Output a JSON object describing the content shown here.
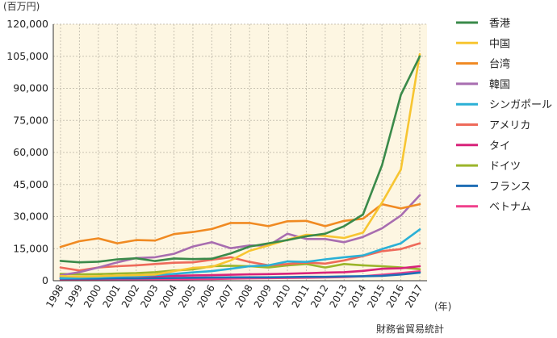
{
  "chart_data": {
    "type": "line",
    "y_unit_label": "(百万円)",
    "x_unit_label": "(年)",
    "source": "財務省貿易統計",
    "ylim": [
      0,
      120000
    ],
    "yticks": [
      "0",
      "15,000",
      "30,000",
      "45,000",
      "60,000",
      "75,000",
      "90,000",
      "105,000",
      "120,000"
    ],
    "x": [
      "1998",
      "1999",
      "2000",
      "2001",
      "2002",
      "2003",
      "2004",
      "2005",
      "2006",
      "2007",
      "2008",
      "2009",
      "2010",
      "2011",
      "2012",
      "2013",
      "2014",
      "2015",
      "2016",
      "2017"
    ],
    "grid": true,
    "legend_position": "right",
    "series": [
      {
        "name": "香港",
        "color": "#3a8a4a",
        "values": [
          9300,
          8600,
          8900,
          10000,
          10500,
          9200,
          10400,
          10100,
          10300,
          12800,
          16000,
          17500,
          19000,
          20800,
          22000,
          25500,
          31000,
          54000,
          87000,
          105000
        ]
      },
      {
        "name": "中国",
        "color": "#f7c531",
        "values": [
          2200,
          1900,
          2100,
          2400,
          2600,
          2900,
          4500,
          6000,
          6500,
          9500,
          14000,
          16500,
          19200,
          21500,
          21000,
          20000,
          22500,
          36500,
          52000,
          106000
        ]
      },
      {
        "name": "台湾",
        "color": "#f08a22",
        "values": [
          15800,
          18500,
          19800,
          17500,
          19000,
          18800,
          21800,
          22800,
          24200,
          27000,
          27000,
          25500,
          27800,
          28000,
          25500,
          28000,
          29000,
          35800,
          33800,
          35800
        ]
      },
      {
        "name": "韓国",
        "color": "#a86db0",
        "values": [
          2600,
          4000,
          6200,
          8600,
          10600,
          11000,
          12600,
          16000,
          18000,
          15200,
          16500,
          16500,
          22000,
          19500,
          19500,
          18000,
          20500,
          24500,
          30500,
          40000
        ]
      },
      {
        "name": "シンガポール",
        "color": "#2ab0d6",
        "values": [
          1200,
          1400,
          1600,
          1900,
          2200,
          2600,
          3200,
          3900,
          4500,
          5600,
          6800,
          7200,
          9000,
          8800,
          10000,
          11000,
          11800,
          14800,
          17500,
          24000
        ]
      },
      {
        "name": "アメリカ",
        "color": "#ee6a5a",
        "values": [
          6200,
          4800,
          6200,
          6800,
          7200,
          7800,
          8400,
          8600,
          9800,
          11000,
          8800,
          7200,
          7800,
          8500,
          8000,
          9500,
          11500,
          13800,
          14800,
          17500
        ]
      },
      {
        "name": "タイ",
        "color": "#d8237a",
        "values": [
          1800,
          1700,
          1800,
          2000,
          2100,
          2200,
          2300,
          2500,
          2600,
          2800,
          3000,
          3100,
          3300,
          3500,
          3800,
          4000,
          4600,
          5600,
          5800,
          6800
        ]
      },
      {
        "name": "ドイツ",
        "color": "#9bb52a",
        "values": [
          3200,
          3000,
          3100,
          3400,
          3600,
          4000,
          4800,
          5300,
          6800,
          7000,
          6800,
          6200,
          7200,
          7800,
          6200,
          7800,
          7200,
          6800,
          6200,
          5400
        ]
      },
      {
        "name": "フランス",
        "color": "#1f6eb5",
        "values": [
          1000,
          1000,
          1000,
          1100,
          1100,
          1200,
          1300,
          1400,
          1500,
          1600,
          1600,
          1600,
          1700,
          1800,
          1800,
          2000,
          2100,
          2300,
          2900,
          3800
        ]
      },
      {
        "name": "ベトナム",
        "color": "#f0408c",
        "values": [
          300,
          300,
          350,
          400,
          450,
          500,
          600,
          700,
          800,
          1000,
          1100,
          1200,
          1300,
          1400,
          1500,
          1700,
          2100,
          2800,
          3600,
          4400
        ]
      }
    ]
  }
}
